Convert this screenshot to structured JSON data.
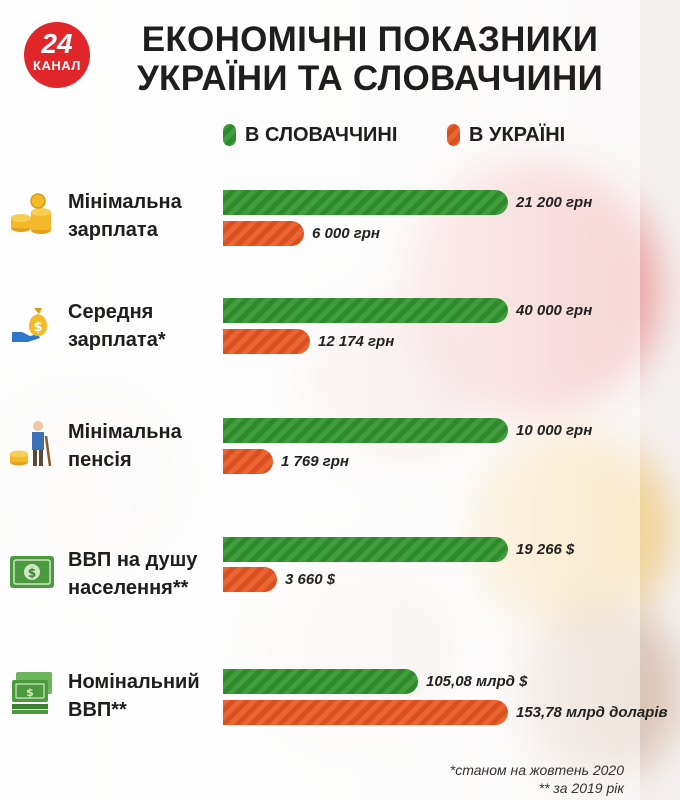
{
  "header": {
    "title_line1": "ЕКОНОМІЧНІ ПОКАЗНИКИ",
    "title_line2": "УКРАЇНИ ТА СЛОВАЧЧИНИ"
  },
  "logo": {
    "number": "24",
    "text": "КАНАЛ"
  },
  "legend": [
    {
      "label": "В СЛОВАЧЧИНІ",
      "color": "#3f9e3b"
    },
    {
      "label": "В УКРАЇНІ",
      "color": "#ec6433"
    }
  ],
  "chart_data": [
    {
      "type": "bar",
      "category": [
        "Мінімальна",
        "зарплата"
      ],
      "icon": "coins-icon",
      "series": [
        {
          "name": "В СЛОВАЧЧИНІ",
          "value": 21200,
          "label": "21 200 грн"
        },
        {
          "name": "В УКРАЇНІ",
          "value": 6000,
          "label": "6 000 грн"
        }
      ]
    },
    {
      "type": "bar",
      "category": [
        "Середня",
        "зарплата*"
      ],
      "icon": "money-bag-icon",
      "series": [
        {
          "name": "В СЛОВАЧЧИНІ",
          "value": 40000,
          "label": "40 000 грн"
        },
        {
          "name": "В УКРАЇНІ",
          "value": 12174,
          "label": "12 174 грн"
        }
      ]
    },
    {
      "type": "bar",
      "category": [
        "Мінімальна",
        "пенсія"
      ],
      "icon": "pensioner-icon",
      "series": [
        {
          "name": "В СЛОВАЧЧИНІ",
          "value": 10000,
          "label": "10 000 грн"
        },
        {
          "name": "В УКРАЇНІ",
          "value": 1769,
          "label": "1 769 грн"
        }
      ]
    },
    {
      "type": "bar",
      "category": [
        "ВВП на душу",
        "населення**"
      ],
      "icon": "banknote-icon",
      "series": [
        {
          "name": "В СЛОВАЧЧИНІ",
          "value": 19266,
          "label": "19 266 $"
        },
        {
          "name": "В УКРАЇНІ",
          "value": 3660,
          "label": "3 660 $"
        }
      ]
    },
    {
      "type": "bar",
      "category": [
        "Номінальний",
        "ВВП**"
      ],
      "icon": "money-stack-icon",
      "series": [
        {
          "name": "В СЛОВАЧЧИНІ",
          "value": 105.08,
          "label": "105,08 млрд $"
        },
        {
          "name": "В УКРАЇНІ",
          "value": 153.78,
          "label": "153,78 млрд доларів"
        }
      ]
    }
  ],
  "footnotes": [
    "*станом на жовтень 2020",
    "** за 2019 рік"
  ],
  "colors": {
    "slovakia": "#3f9e3b",
    "ukraine": "#ec6433",
    "brand": "#e0262b"
  }
}
